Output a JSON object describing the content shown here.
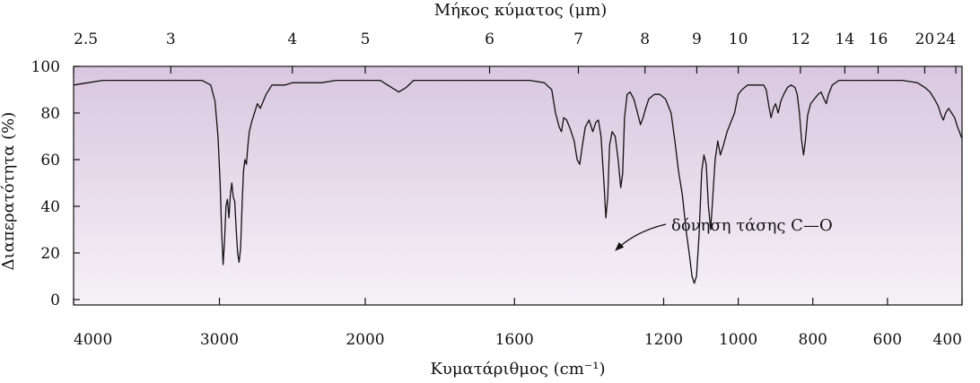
{
  "chart_data": {
    "type": "line",
    "title": "",
    "top_axis": {
      "label": "Μήκος κύματος (μm)",
      "unit": "μm",
      "ticks": [
        2.5,
        3,
        4,
        5,
        6,
        7,
        8,
        9,
        10,
        12,
        14,
        16,
        20,
        24
      ],
      "tick_labels": [
        "2.5",
        "3",
        "4",
        "5",
        "6",
        "7",
        "8",
        "9",
        "10",
        "12",
        "14",
        "16",
        "20",
        "24"
      ]
    },
    "x_axis": {
      "label": "Κυματάριθμος (cm⁻¹)",
      "range": [
        4000,
        400
      ],
      "ticks": [
        4000,
        3000,
        2000,
        1600,
        1200,
        1000,
        800,
        600,
        400
      ],
      "tick_labels": [
        "4000",
        "3000",
        "2000",
        "1600",
        "1200",
        "1000",
        "800",
        "600",
        "400"
      ],
      "scale": "piecewise: 4000-2000 compressed, 2000-400 expanded"
    },
    "y_axis": {
      "label": "Διαπερατότητα (%)",
      "range": [
        0,
        100
      ],
      "ticks": [
        0,
        20,
        40,
        60,
        80,
        100
      ],
      "tick_labels": [
        "0",
        "20",
        "40",
        "60",
        "80",
        "100"
      ]
    },
    "grid": false,
    "background": "gradient lavender (top) to near-white (bottom)",
    "series": [
      {
        "color": "#111111",
        "points": [
          [
            4000,
            92
          ],
          [
            3900,
            93
          ],
          [
            3800,
            94
          ],
          [
            3700,
            94
          ],
          [
            3600,
            94
          ],
          [
            3500,
            94
          ],
          [
            3400,
            94
          ],
          [
            3300,
            94
          ],
          [
            3200,
            94
          ],
          [
            3120,
            94
          ],
          [
            3060,
            92
          ],
          [
            3030,
            85
          ],
          [
            3010,
            70
          ],
          [
            2995,
            50
          ],
          [
            2985,
            30
          ],
          [
            2975,
            15
          ],
          [
            2965,
            25
          ],
          [
            2955,
            40
          ],
          [
            2945,
            43
          ],
          [
            2935,
            35
          ],
          [
            2925,
            45
          ],
          [
            2915,
            50
          ],
          [
            2905,
            44
          ],
          [
            2895,
            42
          ],
          [
            2885,
            30
          ],
          [
            2875,
            20
          ],
          [
            2865,
            16
          ],
          [
            2855,
            22
          ],
          [
            2845,
            40
          ],
          [
            2835,
            55
          ],
          [
            2825,
            60
          ],
          [
            2815,
            58
          ],
          [
            2805,
            66
          ],
          [
            2795,
            72
          ],
          [
            2780,
            76
          ],
          [
            2760,
            80
          ],
          [
            2740,
            84
          ],
          [
            2720,
            82
          ],
          [
            2700,
            85
          ],
          [
            2680,
            88
          ],
          [
            2660,
            90
          ],
          [
            2640,
            92
          ],
          [
            2600,
            92
          ],
          [
            2550,
            92
          ],
          [
            2500,
            93
          ],
          [
            2400,
            93
          ],
          [
            2300,
            93
          ],
          [
            2200,
            94
          ],
          [
            2100,
            94
          ],
          [
            2000,
            94
          ],
          [
            1960,
            94
          ],
          [
            1930,
            91
          ],
          [
            1910,
            89
          ],
          [
            1890,
            91
          ],
          [
            1870,
            94
          ],
          [
            1800,
            94
          ],
          [
            1700,
            94
          ],
          [
            1600,
            94
          ],
          [
            1560,
            94
          ],
          [
            1520,
            93
          ],
          [
            1500,
            90
          ],
          [
            1490,
            80
          ],
          [
            1480,
            74
          ],
          [
            1474,
            72
          ],
          [
            1468,
            78
          ],
          [
            1460,
            77
          ],
          [
            1450,
            73
          ],
          [
            1440,
            68
          ],
          [
            1432,
            60
          ],
          [
            1425,
            58
          ],
          [
            1418,
            66
          ],
          [
            1410,
            74
          ],
          [
            1400,
            77
          ],
          [
            1390,
            72
          ],
          [
            1382,
            76
          ],
          [
            1375,
            77
          ],
          [
            1368,
            70
          ],
          [
            1360,
            50
          ],
          [
            1355,
            35
          ],
          [
            1350,
            44
          ],
          [
            1345,
            66
          ],
          [
            1338,
            72
          ],
          [
            1330,
            70
          ],
          [
            1322,
            60
          ],
          [
            1315,
            48
          ],
          [
            1310,
            54
          ],
          [
            1305,
            78
          ],
          [
            1298,
            88
          ],
          [
            1290,
            89
          ],
          [
            1280,
            86
          ],
          [
            1270,
            80
          ],
          [
            1262,
            75
          ],
          [
            1255,
            78
          ],
          [
            1248,
            82
          ],
          [
            1240,
            86
          ],
          [
            1225,
            88
          ],
          [
            1210,
            88
          ],
          [
            1195,
            86
          ],
          [
            1180,
            80
          ],
          [
            1170,
            68
          ],
          [
            1160,
            55
          ],
          [
            1150,
            45
          ],
          [
            1140,
            30
          ],
          [
            1130,
            18
          ],
          [
            1124,
            10
          ],
          [
            1118,
            7
          ],
          [
            1112,
            10
          ],
          [
            1105,
            28
          ],
          [
            1098,
            55
          ],
          [
            1092,
            62
          ],
          [
            1086,
            58
          ],
          [
            1080,
            40
          ],
          [
            1074,
            30
          ],
          [
            1068,
            45
          ],
          [
            1062,
            60
          ],
          [
            1055,
            68
          ],
          [
            1048,
            62
          ],
          [
            1040,
            66
          ],
          [
            1030,
            72
          ],
          [
            1020,
            76
          ],
          [
            1010,
            80
          ],
          [
            1000,
            88
          ],
          [
            990,
            90
          ],
          [
            975,
            92
          ],
          [
            960,
            92
          ],
          [
            945,
            92
          ],
          [
            932,
            92
          ],
          [
            925,
            90
          ],
          [
            918,
            83
          ],
          [
            912,
            78
          ],
          [
            906,
            82
          ],
          [
            900,
            84
          ],
          [
            893,
            80
          ],
          [
            886,
            85
          ],
          [
            878,
            88
          ],
          [
            868,
            91
          ],
          [
            858,
            92
          ],
          [
            848,
            91
          ],
          [
            842,
            88
          ],
          [
            836,
            80
          ],
          [
            830,
            68
          ],
          [
            825,
            62
          ],
          [
            820,
            68
          ],
          [
            814,
            79
          ],
          [
            806,
            84
          ],
          [
            796,
            86
          ],
          [
            786,
            88
          ],
          [
            778,
            89
          ],
          [
            770,
            86
          ],
          [
            764,
            84
          ],
          [
            758,
            88
          ],
          [
            748,
            92
          ],
          [
            730,
            94
          ],
          [
            700,
            94
          ],
          [
            650,
            94
          ],
          [
            600,
            94
          ],
          [
            560,
            94
          ],
          [
            520,
            93
          ],
          [
            500,
            91
          ],
          [
            486,
            89
          ],
          [
            474,
            86
          ],
          [
            464,
            83
          ],
          [
            456,
            79
          ],
          [
            450,
            77
          ],
          [
            444,
            80
          ],
          [
            436,
            82
          ],
          [
            428,
            80
          ],
          [
            420,
            78
          ],
          [
            412,
            74
          ],
          [
            400,
            69
          ]
        ]
      }
    ],
    "annotations": [
      {
        "text": "δόνηση τάσης C—O",
        "x": 1100,
        "y": 20
      }
    ]
  }
}
